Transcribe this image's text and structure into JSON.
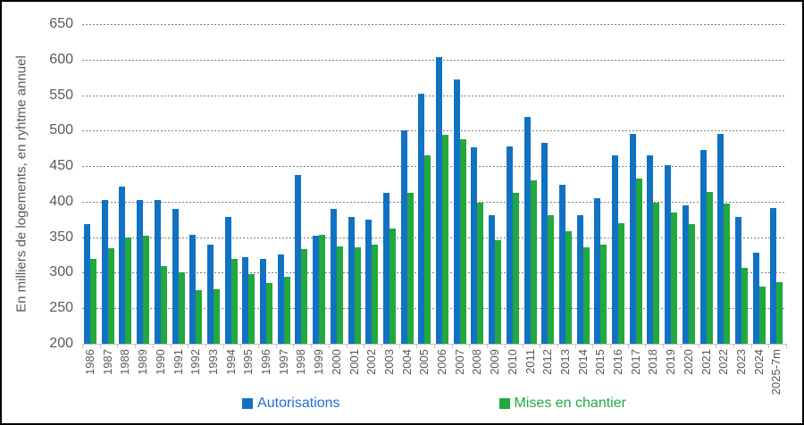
{
  "chart_data": {
    "type": "bar",
    "title": "",
    "xlabel": "",
    "ylabel": "En milliers de logements, en ryhtme annuel",
    "ylim": [
      200,
      650
    ],
    "ytick_step": 50,
    "grid": "horizontal dotted lines, no vertical axis line",
    "legend_position": "bottom-center",
    "categories": [
      "1986",
      "1987",
      "1988",
      "1989",
      "1990",
      "1991",
      "1992",
      "1993",
      "1994",
      "1995",
      "1996",
      "1997",
      "1998",
      "1999",
      "2000",
      "2001",
      "2002",
      "2003",
      "2004",
      "2005",
      "2006",
      "2007",
      "2008",
      "2009",
      "2010",
      "2011",
      "2012",
      "2013",
      "2014",
      "2015",
      "2016",
      "2017",
      "2018",
      "2019",
      "2020",
      "2021",
      "2022",
      "2023",
      "2024",
      "2025-7m"
    ],
    "series": [
      {
        "name": "Autorisations",
        "color": "#1172c4",
        "label_color": "#1f6fd6",
        "values": [
          368,
          402,
          421,
          403,
          403,
          390,
          353,
          340,
          378,
          322,
          320,
          326,
          438,
          352,
          390,
          378,
          375,
          413,
          500,
          552,
          603,
          572,
          477,
          381,
          478,
          519,
          483,
          424,
          381,
          405,
          465,
          495,
          465,
          452,
          395,
          473,
          495,
          378,
          328,
          391
        ]
      },
      {
        "name": "Mises en chantier",
        "color": "#22a83c",
        "label_color": "#21a83c",
        "values": [
          320,
          335,
          350,
          352,
          310,
          301,
          275,
          277,
          320,
          298,
          285,
          294,
          333,
          354,
          337,
          336,
          340,
          362,
          413,
          465,
          494,
          488,
          398,
          346,
          413,
          430,
          381,
          358,
          336,
          340,
          370,
          433,
          399,
          385,
          368,
          414,
          397,
          307,
          280,
          287
        ]
      }
    ]
  },
  "colors": {
    "axis_text": "#595959",
    "gridline": "#7f7f7f",
    "baseline": "#c3c3c3",
    "frame_border": "#000000",
    "background": "#ffffff"
  }
}
